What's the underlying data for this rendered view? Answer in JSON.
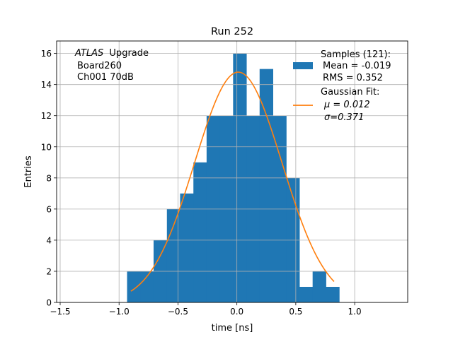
{
  "chart_data": {
    "type": "bar",
    "title": "Run 252",
    "xlabel": "time [ns]",
    "ylabel": "Entries",
    "xlim": [
      -1.53,
      1.45
    ],
    "ylim": [
      0,
      16.8
    ],
    "grid": true,
    "x_ticks": [
      -1.5,
      -1.0,
      -0.5,
      0.0,
      0.5,
      1.0
    ],
    "x_tick_labels": [
      "−1.5",
      "−1.0",
      "−0.5",
      "0.0",
      "0.5",
      "1.0"
    ],
    "y_ticks": [
      0,
      2,
      4,
      6,
      8,
      10,
      12,
      14,
      16
    ],
    "y_tick_labels": [
      "0",
      "2",
      "4",
      "6",
      "8",
      "10",
      "12",
      "14",
      "16"
    ],
    "histogram": {
      "bin_width": 0.1125,
      "bin_lefts": [
        -0.932,
        -0.819,
        -0.707,
        -0.594,
        -0.482,
        -0.369,
        -0.257,
        -0.144,
        -0.032,
        0.081,
        0.193,
        0.306,
        0.418,
        0.531,
        0.643,
        0.756
      ],
      "counts": [
        2,
        2,
        4,
        6,
        7,
        9,
        12,
        12,
        16,
        12,
        15,
        12,
        8,
        1,
        2,
        1
      ],
      "color": "#1f77b4"
    },
    "fit": {
      "mu": 0.012,
      "sigma": 0.371,
      "amplitude": 14.8,
      "x_range": [
        -0.9,
        0.825
      ],
      "color": "#ff7f0e"
    },
    "annotation_lines": [
      "Upgrade",
      "Board260",
      "Ch001 70dB"
    ],
    "annotation_italic": "ATLAS",
    "legend": {
      "placement": "top-right",
      "samples": [
        "Samples (121):",
        "Mean = -0.019",
        "RMS = 0.352"
      ],
      "fit": [
        "Gaussian Fit:",
        "μ = 0.012",
        "σ=0.371"
      ]
    }
  }
}
